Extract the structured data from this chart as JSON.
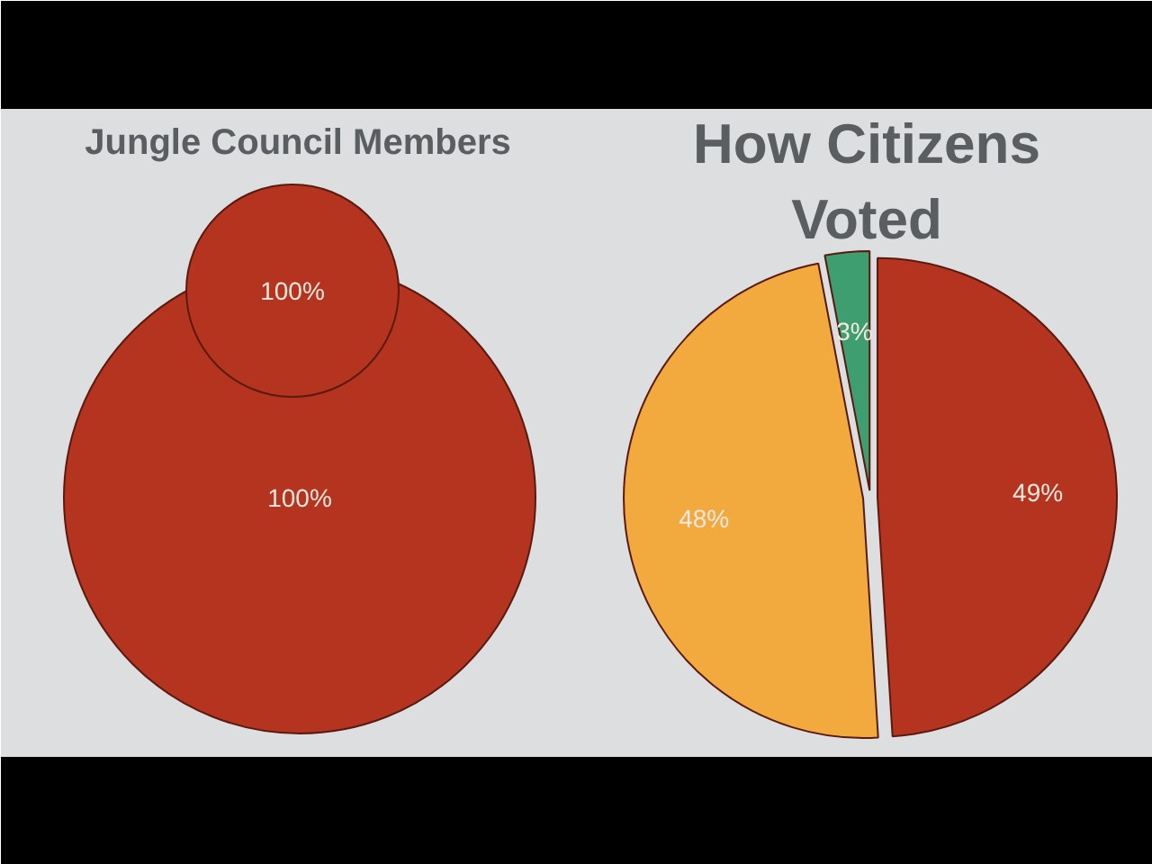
{
  "chart_data": [
    {
      "type": "pie",
      "title": "Jungle Council Members",
      "categories": [
        null
      ],
      "values": [
        100
      ],
      "colors": [
        "#b5341f"
      ],
      "value_labels": [
        "100%"
      ]
    },
    {
      "type": "pie",
      "categories": [
        null
      ],
      "values": [
        100
      ],
      "colors": [
        "#b5341f"
      ],
      "value_labels": [
        "100%"
      ]
    },
    {
      "type": "pie",
      "title": "How Citizens Voted",
      "categories": [
        null,
        null,
        null
      ],
      "values": [
        49,
        48,
        3
      ],
      "colors": [
        "#b5341f",
        "#f2aa3f",
        "#3f9e70"
      ],
      "value_labels": [
        "49%",
        "48%",
        "3%"
      ]
    }
  ]
}
